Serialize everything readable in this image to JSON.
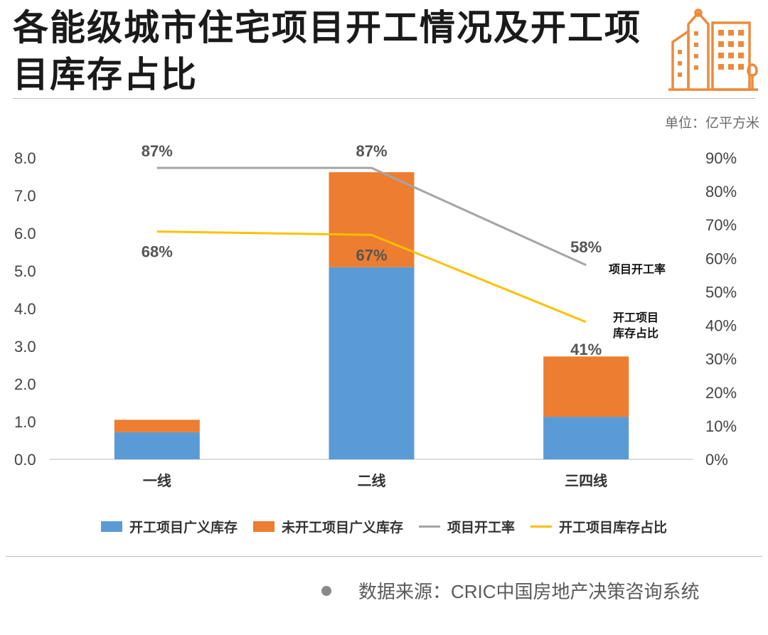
{
  "header": {
    "title": "各能级城市住宅项目开工情况及开工项目库存占比",
    "unit": "单位：亿平方米"
  },
  "legend": {
    "items": [
      {
        "label": "开工项目广义库存",
        "color": "#5b9bd5",
        "kind": "bar"
      },
      {
        "label": "未开工项目广义库存",
        "color": "#ed7d31",
        "kind": "bar"
      },
      {
        "label": "项目开工率",
        "color": "#a5a5a5",
        "kind": "line"
      },
      {
        "label": "开工项目库存占比",
        "color": "#ffc000",
        "kind": "line"
      }
    ]
  },
  "source": {
    "text": "数据来源：CRIC中国房地产决策咨询系统"
  },
  "chart_data": {
    "type": "bar",
    "stacked": true,
    "categories": [
      "一线",
      "二线",
      "三四线"
    ],
    "series": [
      {
        "name": "开工项目广义库存",
        "axis": "left",
        "color": "#5b9bd5",
        "values": [
          0.72,
          5.1,
          1.13
        ]
      },
      {
        "name": "未开工项目广义库存",
        "axis": "left",
        "color": "#ed7d31",
        "values": [
          0.33,
          2.52,
          1.6
        ]
      },
      {
        "name": "项目开工率",
        "axis": "right",
        "type": "line",
        "color": "#a5a5a5",
        "values": [
          87,
          87,
          58
        ],
        "labels": [
          "87%",
          "87%",
          "58%"
        ]
      },
      {
        "name": "开工项目库存占比",
        "axis": "right",
        "type": "line",
        "color": "#ffc000",
        "values": [
          68,
          67,
          41
        ],
        "labels": [
          "68%",
          "67%",
          "41%"
        ]
      }
    ],
    "left_axis": {
      "min": 0,
      "max": 8,
      "ticks": [
        "0.0",
        "1.0",
        "2.0",
        "3.0",
        "4.0",
        "5.0",
        "6.0",
        "7.0",
        "8.0"
      ]
    },
    "right_axis": {
      "min": 0,
      "max": 90,
      "ticks": [
        "0%",
        "10%",
        "20%",
        "30%",
        "40%",
        "50%",
        "60%",
        "70%",
        "80%",
        "90%"
      ]
    },
    "annotations": [
      "项目开工率",
      "开工项目",
      "库存占比"
    ],
    "legend_position": "bottom"
  }
}
